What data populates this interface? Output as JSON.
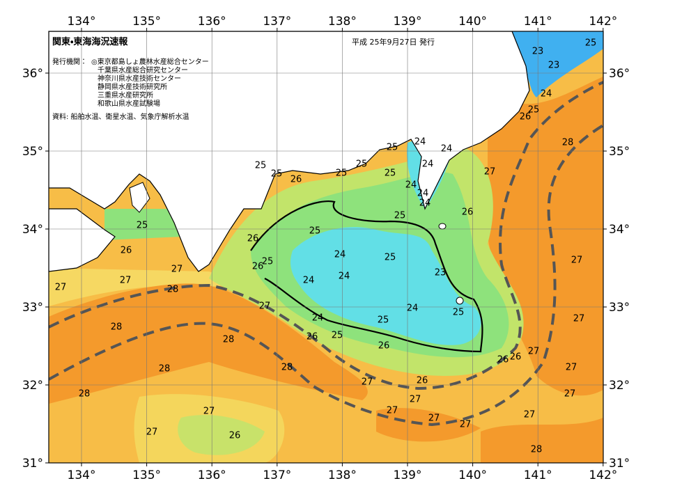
{
  "header": {
    "title": "関東・東海海況速報",
    "date": "平成 25年9月27日 発行",
    "issuer_label": "発行機関：",
    "issuers": [
      "◎東京都島しょ農林水産総合センター",
      "千葉県水産総合研究センター",
      "神奈川県水産技術センター",
      "静岡県水産技術研究所",
      "三重県水産研究所",
      "和歌山県水産試験場"
    ],
    "source": "資料: 船舶水温、衛星水温、気象庁解析水温"
  },
  "map": {
    "lon_ticks": [
      {
        "value": 134,
        "label": "134°"
      },
      {
        "value": 135,
        "label": "135°"
      },
      {
        "value": 136,
        "label": "136°"
      },
      {
        "value": 137,
        "label": "137°"
      },
      {
        "value": 138,
        "label": "138°"
      },
      {
        "value": 139,
        "label": "139°"
      },
      {
        "value": 140,
        "label": "140°"
      },
      {
        "value": 141,
        "label": "141°"
      },
      {
        "value": 142,
        "label": "142°"
      }
    ],
    "lat_ticks": [
      {
        "value": 31,
        "label": "31°"
      },
      {
        "value": 32,
        "label": "32°"
      },
      {
        "value": 33,
        "label": "33°"
      },
      {
        "value": 34,
        "label": "34°"
      },
      {
        "value": 35,
        "label": "35°"
      },
      {
        "value": 36,
        "label": "36°"
      }
    ],
    "contour_labels": [
      23,
      25,
      23,
      24,
      25,
      26,
      28,
      24,
      24,
      25,
      25,
      25,
      25,
      24,
      24,
      24,
      24,
      25,
      25,
      26,
      27,
      26,
      25,
      25,
      25,
      26,
      26,
      25,
      26,
      24,
      25,
      27,
      23,
      24,
      27,
      24,
      27,
      27,
      28,
      27,
      24,
      25,
      27,
      24,
      25,
      28,
      25,
      26,
      28,
      26,
      26,
      26,
      27,
      28,
      28,
      27,
      27,
      26,
      28,
      27,
      27,
      27,
      27,
      27,
      27,
      27,
      27,
      26,
      28
    ]
  }
}
